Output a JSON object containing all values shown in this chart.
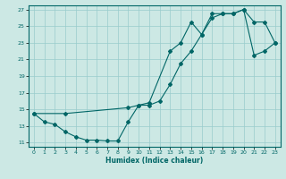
{
  "xlabel": "Humidex (Indice chaleur)",
  "ylabel": "",
  "bg_color": "#cce8e4",
  "grid_color": "#99cccc",
  "line_color": "#006666",
  "xlim": [
    -0.5,
    23.5
  ],
  "ylim": [
    10.5,
    27.5
  ],
  "xticks": [
    0,
    1,
    2,
    3,
    4,
    5,
    6,
    7,
    8,
    9,
    10,
    11,
    12,
    13,
    14,
    15,
    16,
    17,
    18,
    19,
    20,
    21,
    22,
    23
  ],
  "yticks": [
    11,
    13,
    15,
    17,
    19,
    21,
    23,
    25,
    27
  ],
  "line1_x": [
    0,
    1,
    2,
    3,
    4,
    5,
    6,
    7,
    8,
    9,
    10,
    11,
    12,
    13,
    14,
    15,
    16,
    17,
    18,
    19,
    20,
    21,
    22,
    23
  ],
  "line1_y": [
    14.5,
    13.5,
    13.2,
    12.3,
    11.7,
    11.3,
    11.3,
    11.2,
    11.2,
    13.5,
    15.5,
    15.5,
    16.0,
    18.0,
    20.5,
    22.0,
    24.0,
    26.0,
    26.5,
    26.5,
    27.0,
    25.5,
    25.5,
    23.0
  ],
  "line2_x": [
    0,
    3,
    9,
    10,
    11,
    13,
    14,
    15,
    16,
    17,
    18,
    19,
    20,
    21,
    22,
    23
  ],
  "line2_y": [
    14.5,
    14.5,
    15.2,
    15.5,
    15.8,
    22.0,
    23.0,
    25.5,
    24.0,
    26.5,
    26.5,
    26.5,
    27.0,
    21.5,
    22.0,
    23.0
  ]
}
